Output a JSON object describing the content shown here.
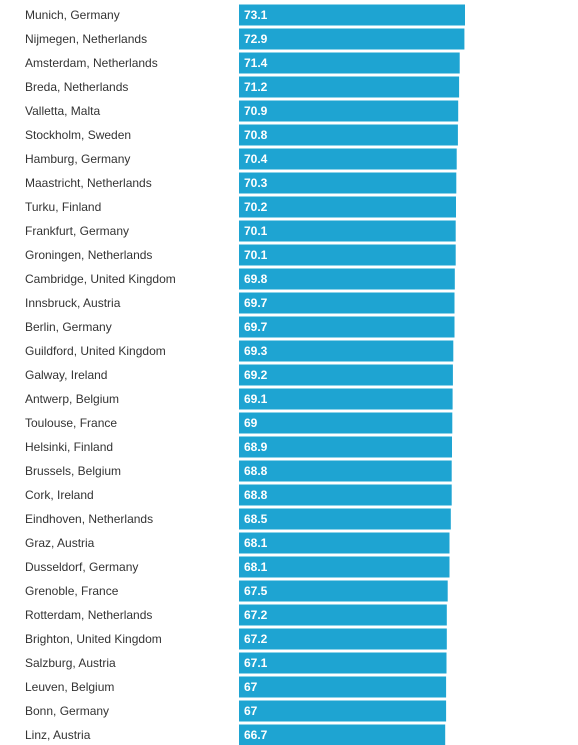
{
  "chart_data": {
    "type": "bar",
    "orientation": "horizontal",
    "title": "",
    "xlabel": "",
    "ylabel": "",
    "bar_color": "#1ea4d2",
    "grid": false,
    "legend": "none",
    "xlim": [
      0,
      73.1
    ],
    "categories": [
      "Munich, Germany",
      "Nijmegen, Netherlands",
      "Amsterdam, Netherlands",
      "Breda, Netherlands",
      "Valletta, Malta",
      "Stockholm, Sweden",
      "Hamburg, Germany",
      "Maastricht, Netherlands",
      "Turku, Finland",
      "Frankfurt, Germany",
      "Groningen, Netherlands",
      "Cambridge, United Kingdom",
      "Innsbruck, Austria",
      "Berlin, Germany",
      "Guildford, United Kingdom",
      "Galway, Ireland",
      "Antwerp, Belgium",
      "Toulouse, France",
      "Helsinki, Finland",
      "Brussels, Belgium",
      "Cork, Ireland",
      "Eindhoven, Netherlands",
      "Graz, Austria",
      "Dusseldorf, Germany",
      "Grenoble, France",
      "Rotterdam, Netherlands",
      "Brighton, United Kingdom",
      "Salzburg, Austria",
      "Leuven, Belgium",
      "Bonn, Germany",
      "Linz, Austria"
    ],
    "values": [
      73.1,
      72.9,
      71.4,
      71.2,
      70.9,
      70.8,
      70.4,
      70.3,
      70.2,
      70.1,
      70.1,
      69.8,
      69.7,
      69.7,
      69.3,
      69.2,
      69.1,
      69,
      68.9,
      68.8,
      68.8,
      68.5,
      68.1,
      68.1,
      67.5,
      67.2,
      67.2,
      67.1,
      67,
      67,
      66.7
    ],
    "value_labels": [
      "73.1",
      "72.9",
      "71.4",
      "71.2",
      "70.9",
      "70.8",
      "70.4",
      "70.3",
      "70.2",
      "70.1",
      "70.1",
      "69.8",
      "69.7",
      "69.7",
      "69.3",
      "69.2",
      "69.1",
      "69",
      "68.9",
      "68.8",
      "68.8",
      "68.5",
      "68.1",
      "68.1",
      "67.5",
      "67.2",
      "67.2",
      "67.1",
      "67",
      "67",
      "66.7"
    ]
  }
}
